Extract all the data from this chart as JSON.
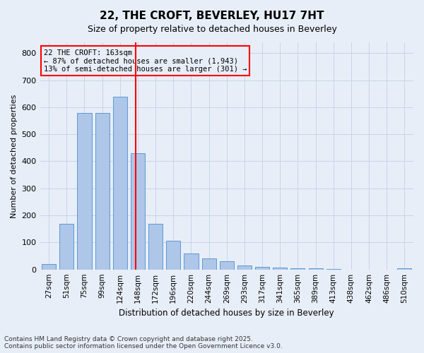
{
  "title": "22, THE CROFT, BEVERLEY, HU17 7HT",
  "subtitle": "Size of property relative to detached houses in Beverley",
  "xlabel": "Distribution of detached houses by size in Beverley",
  "ylabel": "Number of detached properties",
  "footer_line1": "Contains HM Land Registry data © Crown copyright and database right 2025.",
  "footer_line2": "Contains public sector information licensed under the Open Government Licence v3.0.",
  "categories": [
    "27sqm",
    "51sqm",
    "75sqm",
    "99sqm",
    "124sqm",
    "148sqm",
    "172sqm",
    "196sqm",
    "220sqm",
    "244sqm",
    "269sqm",
    "293sqm",
    "317sqm",
    "341sqm",
    "365sqm",
    "389sqm",
    "413sqm",
    "438sqm",
    "462sqm",
    "486sqm",
    "510sqm"
  ],
  "values": [
    20,
    168,
    578,
    578,
    638,
    430,
    170,
    105,
    58,
    42,
    30,
    15,
    10,
    8,
    5,
    5,
    3,
    0,
    0,
    0,
    5
  ],
  "bar_color": "#aec6e8",
  "bar_edge_color": "#5b9bd5",
  "grid_color": "#c8d4e8",
  "background_color": "#e8eef8",
  "vline_x": 5,
  "vline_color": "red",
  "annotation_text": "22 THE CROFT: 163sqm\n← 87% of detached houses are smaller (1,943)\n13% of semi-detached houses are larger (301) →",
  "annotation_box_color": "red",
  "ylim": [
    0,
    840
  ],
  "yticks": [
    0,
    100,
    200,
    300,
    400,
    500,
    600,
    700,
    800
  ]
}
